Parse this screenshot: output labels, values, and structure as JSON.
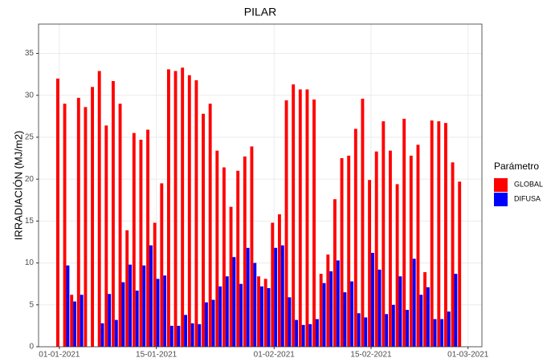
{
  "chart_data": {
    "type": "bar",
    "title": "PILAR",
    "y_label": "IRRADIACIÓN (MJ/m2)",
    "legend_title": "Parámetro",
    "legend_position": "right",
    "grid": true,
    "x": [
      "2021-01-01",
      "2021-01-02",
      "2021-01-03",
      "2021-01-04",
      "2021-01-05",
      "2021-01-06",
      "2021-01-07",
      "2021-01-08",
      "2021-01-09",
      "2021-01-10",
      "2021-01-11",
      "2021-01-12",
      "2021-01-13",
      "2021-01-14",
      "2021-01-15",
      "2021-01-16",
      "2021-01-17",
      "2021-01-18",
      "2021-01-19",
      "2021-01-20",
      "2021-01-21",
      "2021-01-22",
      "2021-01-23",
      "2021-01-24",
      "2021-01-25",
      "2021-01-26",
      "2021-01-27",
      "2021-01-28",
      "2021-01-29",
      "2021-01-30",
      "2021-01-31",
      "2021-02-01",
      "2021-02-02",
      "2021-02-03",
      "2021-02-04",
      "2021-02-05",
      "2021-02-06",
      "2021-02-07",
      "2021-02-08",
      "2021-02-09",
      "2021-02-10",
      "2021-02-11",
      "2021-02-12",
      "2021-02-13",
      "2021-02-14",
      "2021-02-15",
      "2021-02-16",
      "2021-02-17",
      "2021-02-18",
      "2021-02-19",
      "2021-02-20",
      "2021-02-21",
      "2021-02-22",
      "2021-02-23",
      "2021-02-24",
      "2021-02-25",
      "2021-02-26",
      "2021-02-27",
      "2021-02-28"
    ],
    "series": [
      {
        "name": "GLOBAL",
        "color": "#ff0000",
        "values": [
          32,
          29,
          6.2,
          29.7,
          28.6,
          31,
          32.9,
          26.4,
          31.7,
          29,
          13.9,
          25.5,
          24.7,
          25.9,
          14.8,
          19.5,
          33.1,
          32.9,
          33.3,
          32.4,
          31.8,
          27.8,
          29,
          23.4,
          21.4,
          16.7,
          21,
          22.7,
          23.9,
          8.4,
          8.1,
          14.8,
          15.8,
          29.4,
          31.3,
          30.7,
          30.7,
          29.5,
          8.7,
          11,
          17.6,
          22.5,
          22.8,
          26,
          29.6,
          19.9,
          23.3,
          26.9,
          23.4,
          19.4,
          27.2,
          22.8,
          24.1,
          8.9,
          27,
          26.9,
          26.7,
          22,
          19.7
        ]
      },
      {
        "name": "DIFUSA",
        "color": "#0000ff",
        "values": [
          null,
          9.7,
          5.4,
          6.2,
          null,
          null,
          2.8,
          6.3,
          3.2,
          7.7,
          9.8,
          6.7,
          9.7,
          12.1,
          8.1,
          8.5,
          2.5,
          2.5,
          3.8,
          2.8,
          2.7,
          5.3,
          5.6,
          7.2,
          8.4,
          10.7,
          7.5,
          11.8,
          10,
          7.2,
          7,
          11.8,
          12.1,
          5.9,
          3.2,
          2.6,
          2.7,
          3.3,
          7.6,
          9,
          10.3,
          6.5,
          7.8,
          4,
          3.5,
          11.2,
          9.2,
          3.9,
          5,
          8.4,
          4.4,
          10.5,
          6.2,
          7.1,
          3.3,
          3.3,
          4.2,
          8.7,
          null
        ]
      }
    ],
    "xlim": [
      "2020-12-29",
      "2021-03-03"
    ],
    "xticks": [
      {
        "value": "2021-01-01",
        "label": "01-01-2021"
      },
      {
        "value": "2021-01-15",
        "label": "15-01-2021"
      },
      {
        "value": "2021-02-01",
        "label": "01-02-2021"
      },
      {
        "value": "2021-02-15",
        "label": "15-02-2021"
      },
      {
        "value": "2021-03-01",
        "label": "01-03-2021"
      }
    ],
    "ylim": [
      0,
      38.5
    ],
    "yticks": [
      0,
      5,
      10,
      15,
      20,
      25,
      30,
      35
    ]
  }
}
